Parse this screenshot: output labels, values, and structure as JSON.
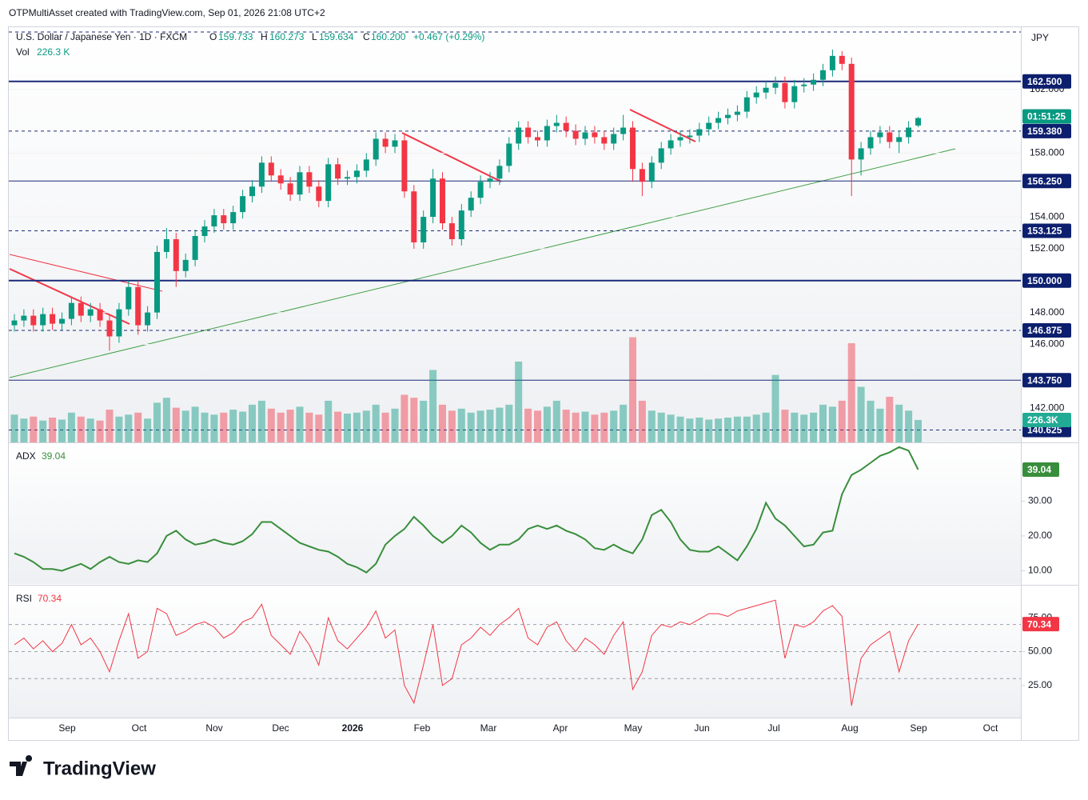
{
  "chart_data": {
    "type": "candlestick",
    "credit": "OTPMultiAsset created with TradingView.com, Sep 01, 2026 21:08 UTC+2",
    "legend": {
      "symbol": "U.S. Dollar / Japanese Yen · 1D · FXCM",
      "o": "O",
      "open": "159.733",
      "h": "H",
      "high": "160.273",
      "l": "L",
      "low": "159.634",
      "c": "C",
      "close": "160.200",
      "change": "+0.467 (+0.29%)",
      "vol": "Vol",
      "vol_value": "226.3 K"
    },
    "currency": "JPY",
    "countdown": "01:51:25",
    "volume_label": "226.3K",
    "up_color": "#089981",
    "down_color": "#f23645",
    "ylim": [
      139.85,
      165.9
    ],
    "yticks": [
      {
        "value": 162,
        "label": "162.000"
      },
      {
        "value": 158,
        "label": "158.000"
      },
      {
        "value": 154,
        "label": "154.000"
      },
      {
        "value": 152,
        "label": "152.000"
      },
      {
        "value": 148,
        "label": "148.000"
      },
      {
        "value": 146,
        "label": "146.000"
      },
      {
        "value": 142,
        "label": "142.000"
      }
    ],
    "levels": [
      {
        "value": 165.6,
        "line": "dashed"
      },
      {
        "value": 162.5,
        "label": "162.500",
        "line": "solid",
        "width": 2
      },
      {
        "value": 159.38,
        "label": "159.380",
        "line": "dashed"
      },
      {
        "value": 156.25,
        "label": "156.250",
        "line": "solid",
        "width": 1
      },
      {
        "value": 153.125,
        "label": "153.125",
        "line": "dashed"
      },
      {
        "value": 150,
        "label": "150.000",
        "line": "solid",
        "width": 2
      },
      {
        "value": 146.875,
        "label": "146.875",
        "line": "dashed"
      },
      {
        "value": 143.75,
        "label": "143.750",
        "line": "solid",
        "width": 1
      },
      {
        "value": 140.625,
        "label": "140.625",
        "line": "dashed"
      }
    ],
    "x_labels": [
      "Sep",
      "Oct",
      "Nov",
      "Dec",
      "2026",
      "Feb",
      "Mar",
      "Apr",
      "May",
      "Jun",
      "Jul",
      "Aug",
      "Sep",
      "Oct"
    ],
    "open": [
      147.2,
      147.5,
      147.8,
      147.2,
      147.9,
      147.3,
      147.6,
      148.6,
      147.8,
      148.2,
      147.5,
      146.5,
      148.2,
      149.6,
      147.2,
      148.0,
      151.8,
      152.6,
      150.6,
      151.3,
      152.8,
      153.4,
      154.1,
      153.6,
      154.3,
      155.3,
      155.9,
      157.4,
      156.6,
      156.1,
      155.4,
      156.8,
      155.9,
      155.0,
      157.3,
      156.4,
      156.5,
      156.9,
      157.6,
      158.9,
      158.4,
      158.8,
      155.6,
      152.4,
      154.0,
      156.4,
      153.6,
      152.6,
      154.4,
      155.2,
      156.2,
      156.4,
      157.2,
      158.6,
      159.6,
      159.0,
      158.8,
      159.7,
      159.9,
      159.4,
      158.9,
      159.3,
      159.0,
      158.6,
      159.2,
      159.6,
      157.0,
      156.2,
      157.4,
      158.3,
      158.8,
      159.0,
      159.1,
      159.5,
      159.9,
      160.2,
      160.4,
      160.6,
      161.5,
      161.8,
      162.1,
      162.4,
      161.2,
      162.2,
      162.3,
      162.6,
      163.2,
      164.1,
      163.6,
      157.6,
      158.3,
      159.0,
      159.3,
      158.7,
      159.0,
      159.733
    ],
    "high": [
      147.9,
      148.2,
      148.2,
      148.3,
      148.3,
      148.0,
      149.0,
      149.0,
      148.6,
      148.6,
      147.9,
      148.6,
      150.0,
      150.0,
      148.4,
      152.2,
      153.3,
      153.0,
      151.7,
      153.2,
      153.8,
      154.5,
      154.5,
      154.7,
      155.7,
      156.3,
      157.8,
      157.8,
      157.0,
      156.5,
      157.2,
      157.2,
      156.3,
      157.7,
      157.7,
      156.9,
      157.3,
      158.0,
      159.3,
      159.3,
      159.2,
      159.2,
      156.0,
      154.4,
      157.0,
      156.8,
      154.0,
      154.8,
      155.6,
      156.6,
      156.8,
      157.6,
      159.0,
      160.0,
      160.0,
      159.4,
      160.1,
      160.4,
      160.3,
      159.8,
      159.7,
      159.7,
      159.4,
      159.6,
      160.4,
      160.0,
      157.4,
      157.8,
      158.7,
      159.2,
      159.4,
      159.5,
      159.9,
      160.3,
      160.6,
      160.8,
      161.0,
      161.9,
      162.2,
      162.5,
      162.8,
      162.8,
      162.6,
      162.7,
      163.0,
      163.6,
      164.5,
      164.4,
      164.0,
      158.7,
      159.4,
      159.7,
      159.7,
      159.4,
      160.0,
      160.273
    ],
    "low": [
      146.8,
      147.1,
      146.8,
      146.8,
      146.9,
      146.9,
      147.2,
      147.4,
      147.4,
      147.1,
      145.6,
      146.1,
      147.8,
      146.6,
      146.8,
      147.6,
      151.4,
      149.6,
      150.2,
      150.9,
      152.4,
      153.0,
      153.2,
      153.2,
      153.9,
      154.9,
      155.5,
      156.2,
      155.7,
      155.0,
      155.0,
      155.5,
      154.6,
      154.6,
      156.0,
      156.0,
      156.1,
      156.5,
      157.2,
      158.0,
      158.0,
      155.2,
      152.0,
      152.0,
      153.6,
      153.2,
      152.2,
      152.2,
      154.0,
      154.8,
      155.8,
      156.0,
      156.8,
      158.2,
      158.6,
      158.4,
      158.4,
      159.3,
      159.0,
      158.5,
      158.5,
      158.6,
      158.2,
      158.2,
      158.8,
      156.2,
      155.3,
      155.8,
      157.0,
      157.9,
      158.4,
      158.6,
      158.7,
      159.1,
      159.5,
      159.8,
      160.0,
      160.2,
      161.1,
      161.4,
      161.7,
      160.8,
      160.8,
      161.8,
      161.9,
      162.2,
      162.8,
      163.2,
      155.3,
      156.6,
      157.9,
      158.6,
      158.3,
      158.0,
      158.6,
      159.634
    ],
    "close": [
      147.5,
      147.8,
      147.2,
      147.9,
      147.3,
      147.6,
      148.6,
      147.8,
      148.2,
      147.5,
      146.5,
      148.2,
      149.6,
      147.2,
      148.0,
      151.8,
      152.6,
      150.6,
      151.3,
      152.8,
      153.4,
      154.1,
      153.6,
      154.3,
      155.3,
      155.9,
      157.4,
      156.6,
      156.1,
      155.4,
      156.8,
      155.9,
      155.0,
      157.3,
      156.4,
      156.5,
      156.9,
      157.6,
      158.9,
      158.4,
      158.8,
      155.6,
      152.4,
      154.0,
      156.4,
      153.6,
      152.6,
      154.4,
      155.2,
      156.2,
      156.4,
      157.2,
      158.6,
      159.6,
      159.0,
      158.8,
      159.7,
      159.9,
      159.4,
      158.9,
      159.3,
      159.0,
      158.6,
      159.2,
      159.6,
      157.0,
      156.2,
      157.4,
      158.3,
      158.8,
      159.0,
      159.1,
      159.5,
      159.9,
      160.2,
      160.4,
      160.6,
      161.5,
      161.8,
      162.1,
      162.4,
      161.2,
      162.2,
      162.3,
      162.6,
      163.2,
      164.1,
      163.6,
      157.6,
      158.3,
      159.0,
      159.3,
      158.7,
      159.0,
      159.6,
      160.2
    ],
    "volume": [
      280,
      240,
      260,
      220,
      250,
      230,
      300,
      260,
      240,
      220,
      330,
      260,
      280,
      300,
      240,
      400,
      450,
      350,
      320,
      360,
      300,
      280,
      300,
      330,
      310,
      380,
      420,
      340,
      300,
      330,
      360,
      300,
      280,
      420,
      310,
      290,
      300,
      320,
      380,
      300,
      340,
      480,
      450,
      420,
      730,
      380,
      320,
      340,
      300,
      320,
      330,
      350,
      380,
      815,
      340,
      320,
      360,
      420,
      330,
      300,
      310,
      280,
      300,
      320,
      380,
      1060,
      420,
      320,
      300,
      280,
      260,
      240,
      250,
      230,
      240,
      250,
      260,
      260,
      280,
      300,
      680,
      330,
      300,
      280,
      300,
      380,
      360,
      420,
      1000,
      560,
      420,
      340,
      460,
      380,
      320,
      226.3
    ],
    "adx": {
      "name": "ADX",
      "value_label": "39.04",
      "color": "#388e3c",
      "ylim": [
        6.2,
        46.4
      ],
      "yticks": [
        {
          "value": 30,
          "label": "30.00"
        },
        {
          "value": 20,
          "label": "20.00"
        },
        {
          "value": 10,
          "label": "10.00"
        }
      ],
      "values": [
        15,
        14,
        12.5,
        10.5,
        10.5,
        10,
        11,
        12,
        10.5,
        12.5,
        14,
        12.5,
        12,
        13,
        12.5,
        15,
        20,
        21.5,
        19,
        17.5,
        18,
        19,
        18,
        17.5,
        18.5,
        20.5,
        24,
        24,
        22,
        20,
        18,
        17,
        16,
        15.5,
        14,
        12,
        11,
        9.5,
        12,
        17.5,
        20,
        22,
        25.5,
        23,
        20,
        18,
        20,
        23,
        21,
        18,
        16,
        17.5,
        17.5,
        19,
        22,
        23,
        22,
        23,
        21.5,
        20.5,
        19,
        16.5,
        16,
        17.5,
        16,
        15,
        19,
        26,
        27.5,
        24,
        19,
        16,
        15.5,
        15.5,
        17,
        15,
        13,
        17,
        22,
        29.5,
        25,
        23,
        20,
        17,
        17.5,
        21,
        21.5,
        32,
        37.5,
        39,
        41,
        43,
        44,
        45.5,
        44.5,
        39.04
      ]
    },
    "rsi": {
      "name": "RSI",
      "value_label": "70.34",
      "color": "#f23645",
      "ylim": [
        1.2,
        97
      ],
      "bands": [
        70,
        50,
        30
      ],
      "yticks": [
        {
          "value": 75,
          "label": "75.00"
        },
        {
          "value": 50,
          "label": "50.00"
        },
        {
          "value": 25,
          "label": "25.00"
        }
      ],
      "values": [
        55,
        60,
        52,
        58,
        50,
        56,
        70,
        55,
        60,
        50,
        35,
        58,
        78,
        45,
        50,
        82,
        78,
        62,
        65,
        70,
        72,
        68,
        60,
        64,
        72,
        75,
        85,
        62,
        55,
        48,
        65,
        55,
        40,
        75,
        58,
        52,
        60,
        68,
        80,
        60,
        66,
        25,
        12,
        40,
        70,
        25,
        30,
        55,
        60,
        68,
        62,
        70,
        75,
        82,
        60,
        55,
        68,
        72,
        58,
        50,
        60,
        55,
        48,
        62,
        72,
        22,
        35,
        62,
        70,
        68,
        72,
        70,
        74,
        78,
        78,
        76,
        80,
        82,
        84,
        86,
        88,
        45,
        70,
        68,
        72,
        80,
        84,
        76,
        10,
        45,
        55,
        60,
        65,
        35,
        58,
        70.34
      ]
    },
    "brand": "TradingView"
  }
}
